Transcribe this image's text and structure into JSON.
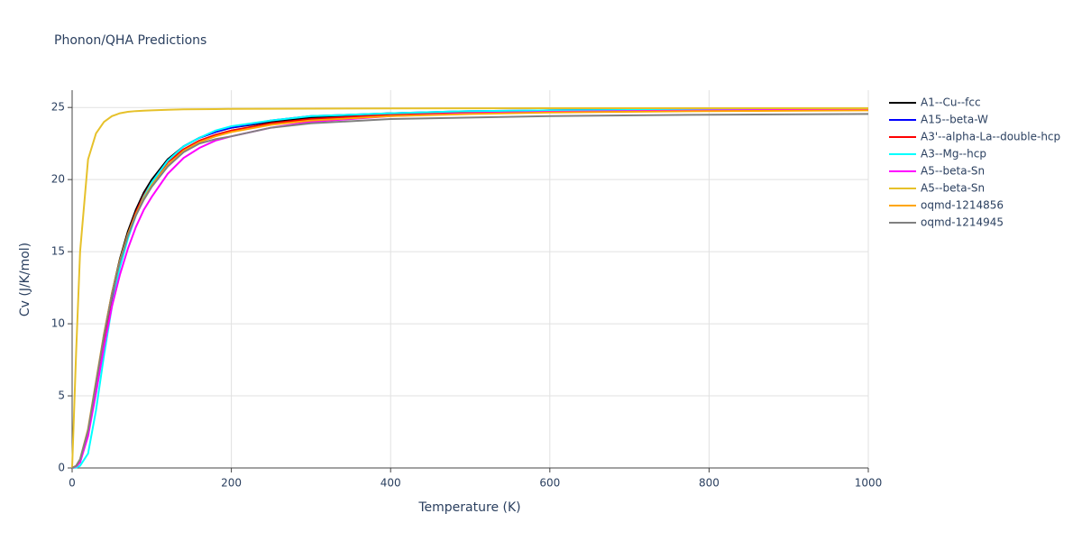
{
  "chart_data": {
    "type": "line",
    "title": "Phonon/QHA Predictions",
    "xlabel": "Temperature (K)",
    "ylabel": "Cv (J/K/mol)",
    "x": [
      0,
      5,
      10,
      20,
      30,
      40,
      50,
      60,
      70,
      80,
      90,
      100,
      120,
      140,
      160,
      180,
      200,
      250,
      300,
      400,
      500,
      600,
      800,
      1000
    ],
    "series": [
      {
        "name": "A1--Cu--fcc",
        "color": "#000000",
        "values": [
          0,
          0.1,
          0.5,
          2.5,
          5.8,
          9.2,
          12.1,
          14.5,
          16.4,
          17.9,
          19.1,
          20.0,
          21.4,
          22.3,
          22.9,
          23.3,
          23.6,
          24.0,
          24.3,
          24.6,
          24.7,
          24.8,
          24.85,
          24.9
        ]
      },
      {
        "name": "A15--beta-W",
        "color": "#0000ff",
        "values": [
          0,
          0.1,
          0.4,
          2.3,
          5.5,
          8.9,
          11.8,
          14.2,
          16.1,
          17.7,
          18.9,
          19.8,
          21.3,
          22.3,
          22.9,
          23.3,
          23.6,
          24.1,
          24.4,
          24.6,
          24.75,
          24.8,
          24.85,
          24.9
        ]
      },
      {
        "name": "A3'--alpha-La--double-hcp",
        "color": "#ff0000",
        "values": [
          0,
          0.1,
          0.5,
          2.4,
          5.6,
          9.0,
          11.9,
          14.3,
          16.2,
          17.7,
          18.9,
          19.8,
          21.2,
          22.1,
          22.7,
          23.1,
          23.4,
          23.9,
          24.2,
          24.5,
          24.65,
          24.7,
          24.8,
          24.85
        ]
      },
      {
        "name": "A3--Mg--hcp",
        "color": "#00ffff",
        "values": [
          0,
          0.02,
          0.15,
          1.0,
          4.0,
          7.8,
          11.2,
          13.9,
          15.9,
          17.5,
          18.8,
          19.8,
          21.3,
          22.3,
          22.9,
          23.4,
          23.7,
          24.1,
          24.4,
          24.6,
          24.75,
          24.8,
          24.85,
          24.9
        ]
      },
      {
        "name": "A5--beta-Sn",
        "color": "#ff00ff",
        "values": [
          0,
          0.1,
          0.4,
          2.2,
          5.2,
          8.4,
          11.2,
          13.4,
          15.2,
          16.7,
          17.9,
          18.8,
          20.4,
          21.5,
          22.2,
          22.7,
          23.0,
          23.6,
          24.0,
          24.4,
          24.6,
          24.7,
          24.8,
          24.85
        ]
      },
      {
        "name": "A5--beta-Sn",
        "color": "#e6c12a",
        "values": [
          0,
          8,
          15,
          21.4,
          23.2,
          24.0,
          24.4,
          24.6,
          24.7,
          24.75,
          24.78,
          24.8,
          24.84,
          24.87,
          24.88,
          24.89,
          24.9,
          24.91,
          24.92,
          24.93,
          24.94,
          24.95,
          24.95,
          24.95
        ]
      },
      {
        "name": "oqmd-1214856",
        "color": "#ffa500",
        "values": [
          0,
          0.15,
          0.6,
          2.7,
          6.0,
          9.3,
          12.1,
          14.4,
          16.2,
          17.6,
          18.7,
          19.6,
          21.0,
          22.0,
          22.6,
          23.0,
          23.3,
          23.8,
          24.1,
          24.4,
          24.55,
          24.65,
          24.75,
          24.8
        ]
      },
      {
        "name": "oqmd-1214945",
        "color": "#808080",
        "values": [
          0,
          0.15,
          0.6,
          2.6,
          5.9,
          9.2,
          12.0,
          14.3,
          16.1,
          17.5,
          18.6,
          19.5,
          20.9,
          21.9,
          22.5,
          22.8,
          23.0,
          23.6,
          23.9,
          24.2,
          24.3,
          24.4,
          24.5,
          24.55
        ]
      }
    ],
    "xlim": [
      0,
      1000
    ],
    "xticks": [
      0,
      200,
      400,
      600,
      800,
      1000
    ],
    "ylim": [
      0,
      26.2
    ],
    "yticks": [
      0,
      5,
      10,
      15,
      20,
      25
    ],
    "grid": true
  }
}
